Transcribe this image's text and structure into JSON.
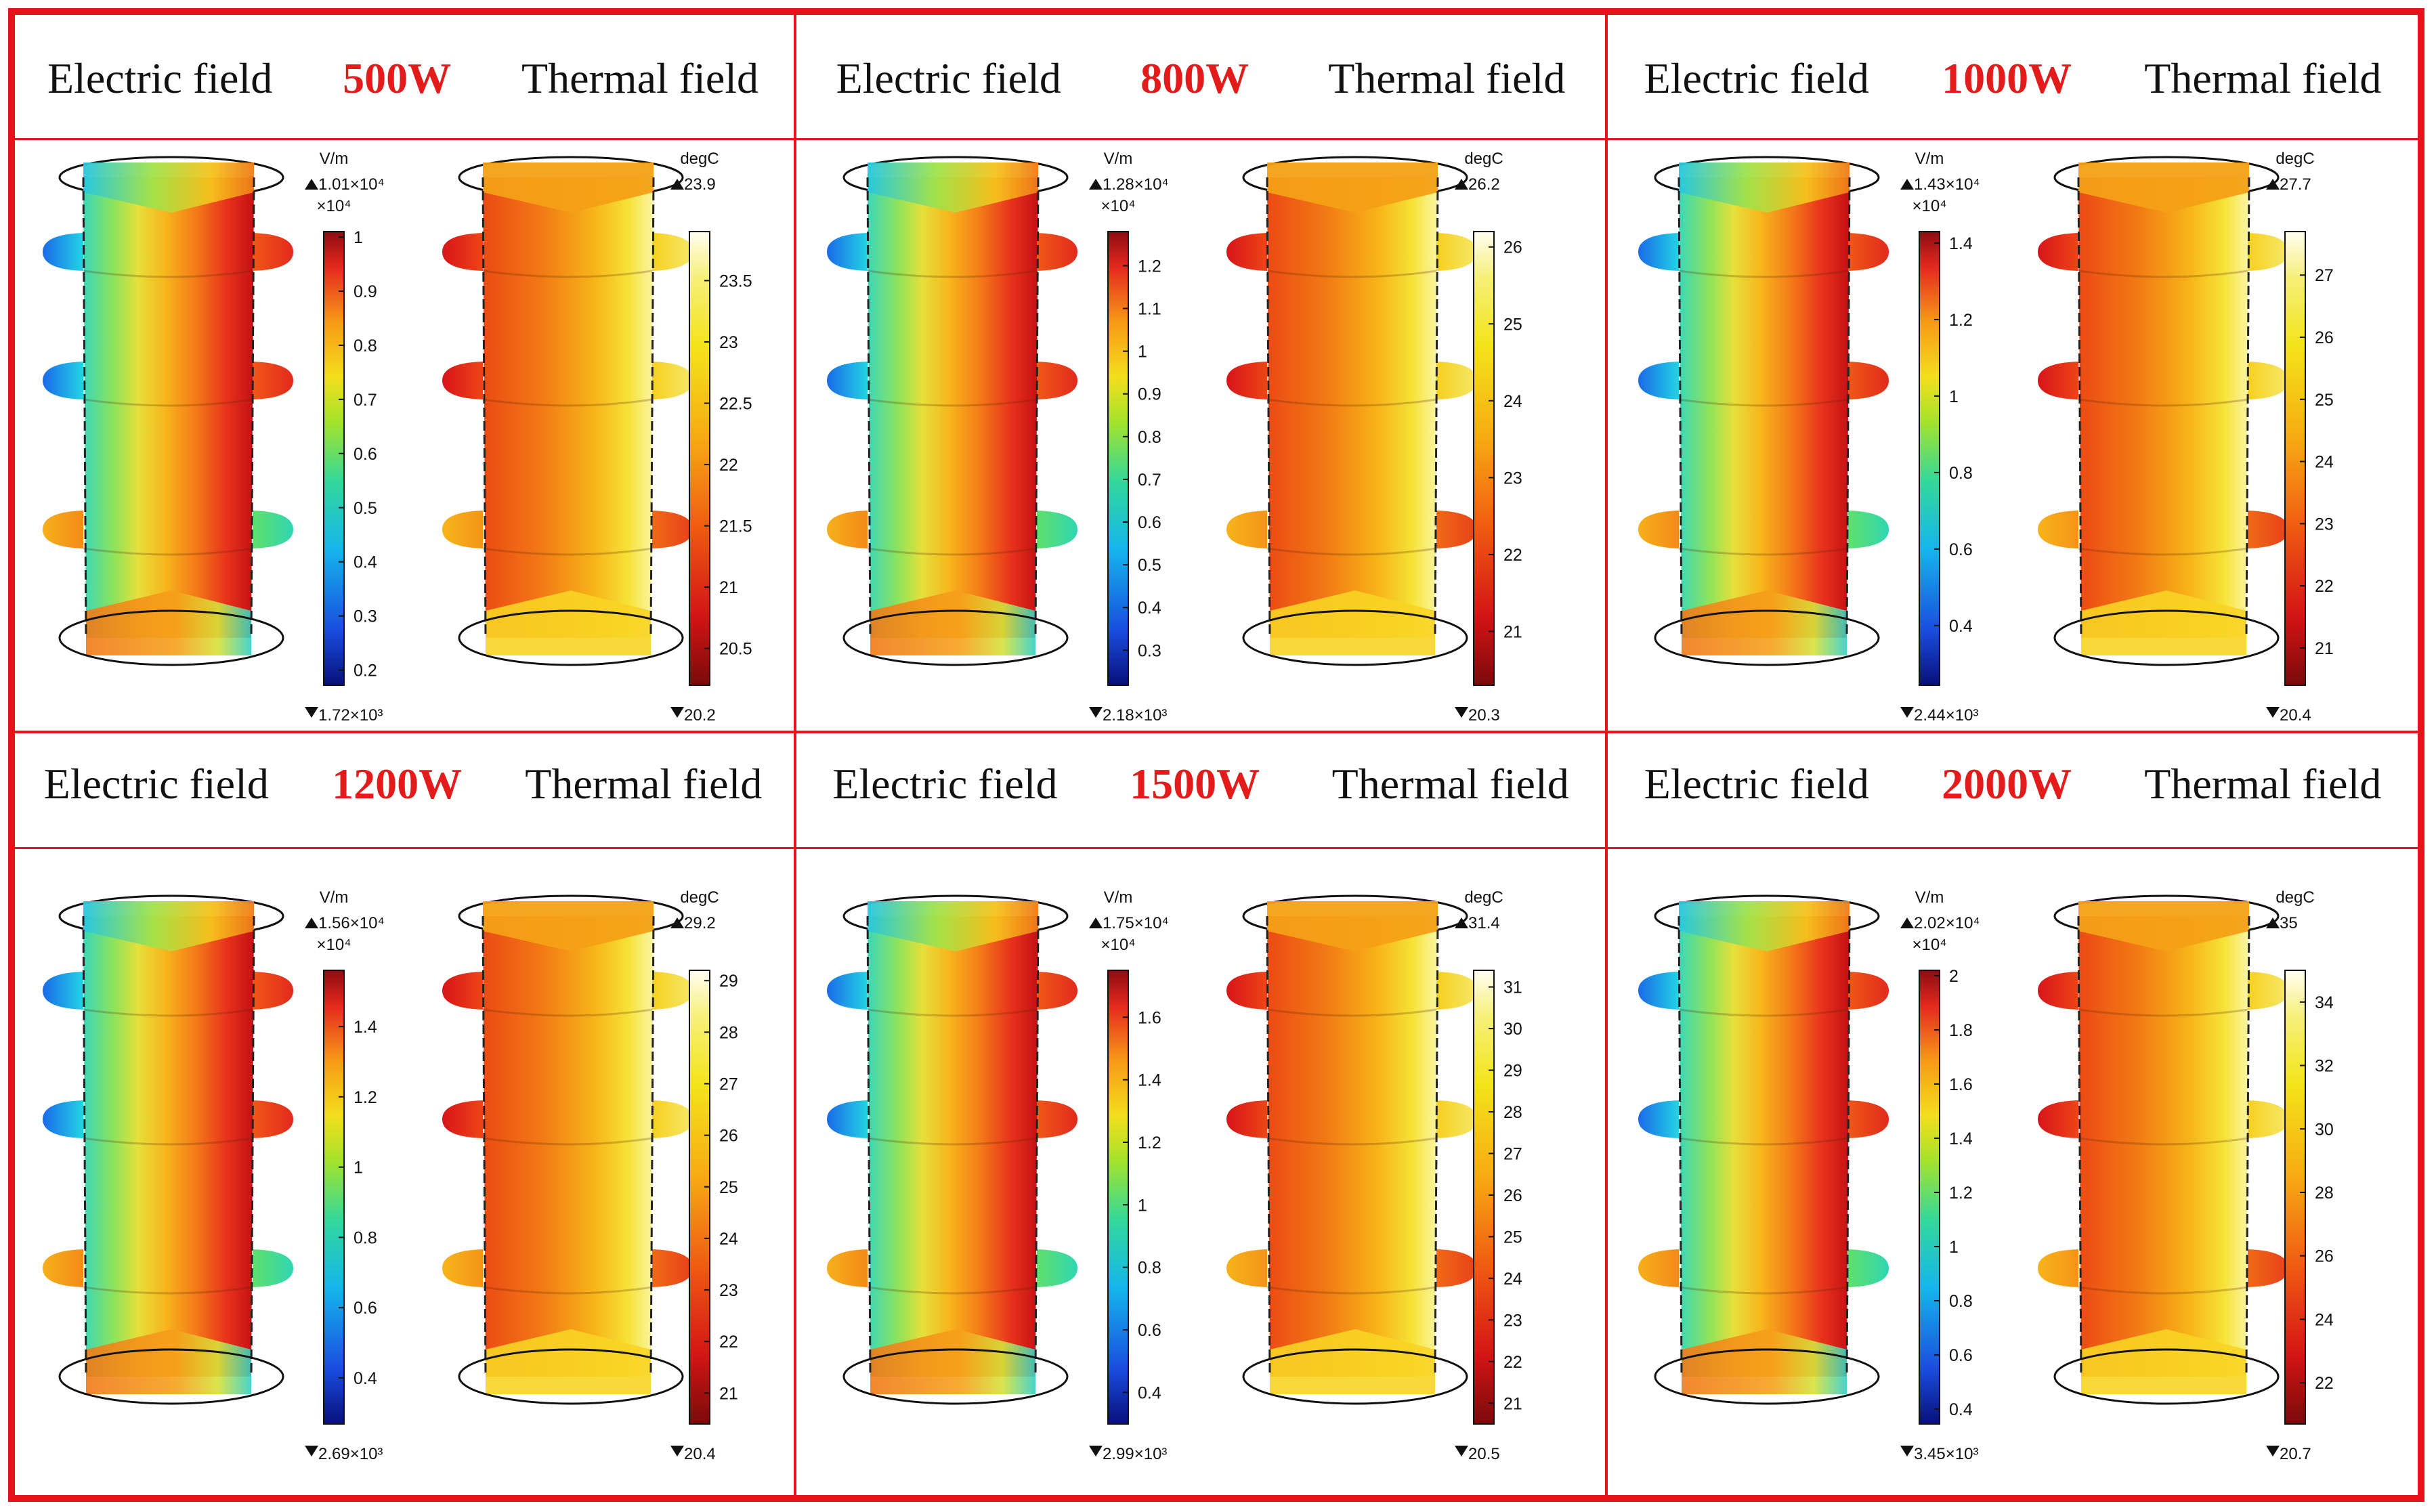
{
  "figure": {
    "left_label": "Electric field",
    "right_label": "Thermal field",
    "electric_unit": "V/m",
    "thermal_unit": "degC",
    "electric_multiplier": "×10⁴",
    "colors": {
      "border": "#e8121b",
      "power_text": "#e31b1b",
      "electric_colormap": [
        "#08107a",
        "#1a4ce0",
        "#14b6ec",
        "#33d89a",
        "#a4e32a",
        "#f3de1c",
        "#f79a16",
        "#e52a1e",
        "#8e0b12"
      ],
      "thermal_colormap": [
        "#7a0b0b",
        "#d31414",
        "#f05b12",
        "#f7ac12",
        "#f3e41a",
        "#f6f07a",
        "#fffef2"
      ]
    }
  },
  "panels": [
    {
      "power": "500W",
      "electric": {
        "max": "1.01×10⁴",
        "min": "1.72×10³",
        "ticks": [
          "1",
          "0.9",
          "0.8",
          "0.7",
          "0.6",
          "0.5",
          "0.4",
          "0.3",
          "0.2"
        ],
        "tick_values": [
          1,
          0.9,
          0.8,
          0.7,
          0.6,
          0.5,
          0.4,
          0.3,
          0.2
        ],
        "range": [
          0.172,
          1.01
        ]
      },
      "thermal": {
        "max": "23.9",
        "min": "20.2",
        "ticks": [
          "23.5",
          "23",
          "22.5",
          "22",
          "21.5",
          "21",
          "20.5"
        ],
        "tick_values": [
          23.5,
          23,
          22.5,
          22,
          21.5,
          21,
          20.5
        ],
        "range": [
          20.2,
          23.9
        ]
      }
    },
    {
      "power": "800W",
      "electric": {
        "max": "1.28×10⁴",
        "min": "2.18×10³",
        "ticks": [
          "1.2",
          "1.1",
          "1",
          "0.9",
          "0.8",
          "0.7",
          "0.6",
          "0.5",
          "0.4",
          "0.3"
        ],
        "tick_values": [
          1.2,
          1.1,
          1,
          0.9,
          0.8,
          0.7,
          0.6,
          0.5,
          0.4,
          0.3
        ],
        "range": [
          0.218,
          1.28
        ]
      },
      "thermal": {
        "max": "26.2",
        "min": "20.3",
        "ticks": [
          "26",
          "25",
          "24",
          "23",
          "22",
          "21"
        ],
        "tick_values": [
          26,
          25,
          24,
          23,
          22,
          21
        ],
        "range": [
          20.3,
          26.2
        ]
      }
    },
    {
      "power": "1000W",
      "electric": {
        "max": "1.43×10⁴",
        "min": "2.44×10³",
        "ticks": [
          "1.4",
          "1.2",
          "1",
          "0.8",
          "0.6",
          "0.4"
        ],
        "tick_values": [
          1.4,
          1.2,
          1,
          0.8,
          0.6,
          0.4
        ],
        "range": [
          0.244,
          1.43
        ]
      },
      "thermal": {
        "max": "27.7",
        "min": "20.4",
        "ticks": [
          "27",
          "26",
          "25",
          "24",
          "23",
          "22",
          "21"
        ],
        "tick_values": [
          27,
          26,
          25,
          24,
          23,
          22,
          21
        ],
        "range": [
          20.4,
          27.7
        ]
      }
    },
    {
      "power": "1200W",
      "electric": {
        "max": "1.56×10⁴",
        "min": "2.69×10³",
        "ticks": [
          "1.4",
          "1.2",
          "1",
          "0.8",
          "0.6",
          "0.4"
        ],
        "tick_values": [
          1.4,
          1.2,
          1,
          0.8,
          0.6,
          0.4
        ],
        "range": [
          0.269,
          1.56
        ]
      },
      "thermal": {
        "max": "29.2",
        "min": "20.4",
        "ticks": [
          "29",
          "28",
          "27",
          "26",
          "25",
          "24",
          "23",
          "22",
          "21"
        ],
        "tick_values": [
          29,
          28,
          27,
          26,
          25,
          24,
          23,
          22,
          21
        ],
        "range": [
          20.4,
          29.2
        ]
      }
    },
    {
      "power": "1500W",
      "electric": {
        "max": "1.75×10⁴",
        "min": "2.99×10³",
        "ticks": [
          "1.6",
          "1.4",
          "1.2",
          "1",
          "0.8",
          "0.6",
          "0.4"
        ],
        "tick_values": [
          1.6,
          1.4,
          1.2,
          1,
          0.8,
          0.6,
          0.4
        ],
        "range": [
          0.299,
          1.75
        ]
      },
      "thermal": {
        "max": "31.4",
        "min": "20.5",
        "ticks": [
          "31",
          "30",
          "29",
          "28",
          "27",
          "26",
          "25",
          "24",
          "23",
          "22",
          "21"
        ],
        "tick_values": [
          31,
          30,
          29,
          28,
          27,
          26,
          25,
          24,
          23,
          22,
          21
        ],
        "range": [
          20.5,
          31.4
        ]
      }
    },
    {
      "power": "2000W",
      "electric": {
        "max": "2.02×10⁴",
        "min": "3.45×10³",
        "ticks": [
          "2",
          "1.8",
          "1.6",
          "1.4",
          "1.2",
          "1",
          "0.8",
          "0.6",
          "0.4"
        ],
        "tick_values": [
          2,
          1.8,
          1.6,
          1.4,
          1.2,
          1,
          0.8,
          0.6,
          0.4
        ],
        "range": [
          0.345,
          2.02
        ]
      },
      "thermal": {
        "max": "35",
        "min": "20.7",
        "ticks": [
          "34",
          "32",
          "30",
          "28",
          "26",
          "24",
          "22"
        ],
        "tick_values": [
          34,
          32,
          30,
          28,
          26,
          24,
          22
        ],
        "range": [
          20.7,
          35
        ]
      }
    }
  ]
}
